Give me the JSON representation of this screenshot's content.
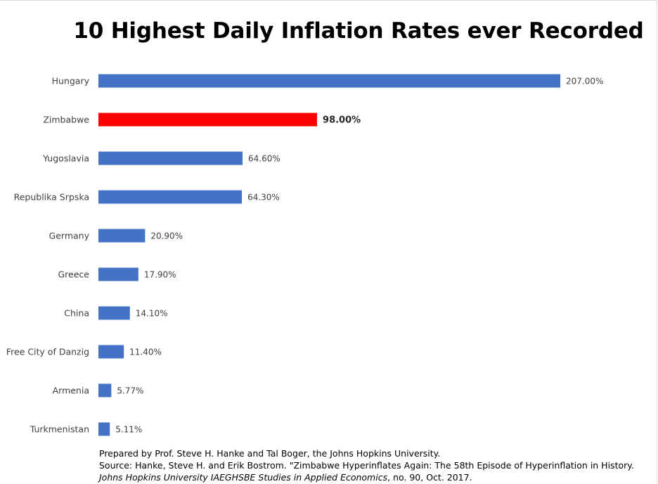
{
  "chart_data": {
    "type": "bar",
    "orientation": "horizontal",
    "title": "10 Highest Daily Inflation Rates ever Recorded",
    "categories": [
      "Hungary",
      "Zimbabwe",
      "Yugoslavia",
      "Republika Srpska",
      "Germany",
      "Greece",
      "China",
      "Free City of Danzig",
      "Armenia",
      "Turkmenistan"
    ],
    "values": [
      207.0,
      98.0,
      64.6,
      64.3,
      20.9,
      17.9,
      14.1,
      11.4,
      5.77,
      5.11
    ],
    "value_labels": [
      "207.00%",
      "98.00%",
      "64.60%",
      "64.30%",
      "20.90%",
      "17.90%",
      "14.10%",
      "11.40%",
      "5.77%",
      "5.11%"
    ],
    "highlight_category": "Zimbabwe",
    "colors": {
      "default": "#4472C4",
      "highlight": "#FF0000"
    },
    "xlim": [
      0,
      207
    ],
    "grid": false,
    "legend": "none"
  },
  "footnote": {
    "line1": "Prepared by Prof. Steve H. Hanke and Tal Boger, the Johns Hopkins University.",
    "source_prefix": "Source: Hanke, Steve H. and Erik Bostrom. \"Zimbabwe Hyperinflates Again: The 58th Episode of Hyperinflation in History.",
    "source_journal": "Johns Hopkins University IAEGHSBE Studies in Applied Economics",
    "source_suffix": ", no. 90, Oct. 2017."
  }
}
